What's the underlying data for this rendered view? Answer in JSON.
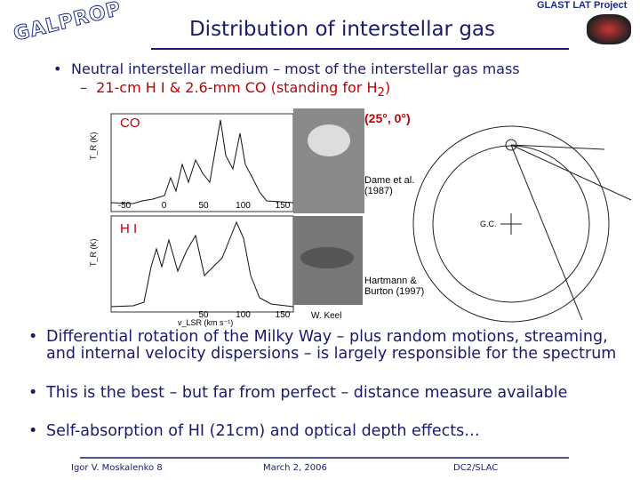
{
  "header": {
    "logo": "GALPROP",
    "project": "GLAST LAT Project",
    "title": "Distribution of interstellar gas"
  },
  "bullets_top": [
    {
      "text": "Neutral interstellar medium – most of the interstellar gas mass",
      "sub": {
        "before": "21-cm H I & 2.6-mm CO (standing for H",
        "subscript": "2",
        "after": ")"
      }
    }
  ],
  "figure": {
    "co_label": "CO",
    "hi_label": "H I",
    "direction": "(25°, 0°)",
    "co_credit": "Dame et al. (1987)",
    "hi_credit": "Hartmann & Burton (1997)",
    "photo_credit": "W. Keel",
    "gc_label": "G.C.",
    "y_axis_label": "T_R (K)",
    "x_axis_label": "v_LSR (km s⁻¹)",
    "co_xticks": [
      -50,
      0,
      50,
      100,
      150
    ],
    "hi_xticks": [
      50,
      100,
      150
    ]
  },
  "bullets_bottom": [
    "Differential rotation of the Milky Way – plus random motions, streaming, and internal velocity dispersions – is largely responsible for the spectrum",
    "This is the best – but far from perfect – distance measure available",
    "Self-absorption of HI (21cm) and optical depth effects…"
  ],
  "footer": {
    "author": "Igor V. Moskalenko 8",
    "date": "March 2, 2006",
    "place": "DC2/SLAC"
  }
}
